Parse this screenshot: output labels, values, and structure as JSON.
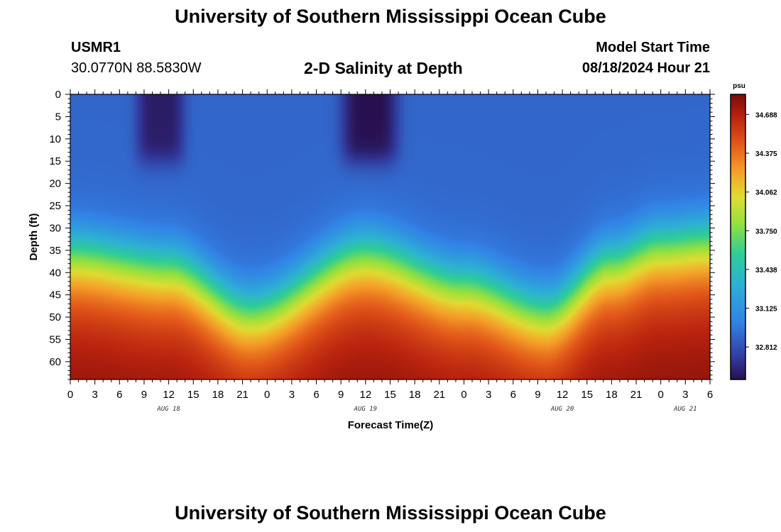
{
  "header": {
    "title": "University of Southern Mississippi Ocean Cube",
    "station_id": "USMR1",
    "coords": "30.0770N  88.5830W",
    "plot_title": "2-D Salinity at Depth",
    "model_start_label": "Model Start Time",
    "model_start_value": "08/18/2024 Hour 21"
  },
  "footer": {
    "title": "University of Southern Mississippi Ocean Cube"
  },
  "chart_data": {
    "type": "heatmap",
    "title": "2-D Salinity at Depth",
    "xlabel": "Forecast Time(Z)",
    "ylabel": "Depth (ft)",
    "x_hours_range": [
      0,
      78
    ],
    "x_tick_labels": [
      "0",
      "3",
      "6",
      "9",
      "12",
      "15",
      "18",
      "21",
      "0",
      "3",
      "6",
      "9",
      "12",
      "15",
      "18",
      "21",
      "0",
      "3",
      "6",
      "9",
      "12",
      "15",
      "18",
      "21",
      "0",
      "3",
      "6"
    ],
    "date_labels": [
      {
        "label": "AUG 18",
        "hour": 12
      },
      {
        "label": "AUG 19",
        "hour": 36
      },
      {
        "label": "AUG 20",
        "hour": 60
      },
      {
        "label": "AUG 21",
        "hour": 75
      }
    ],
    "y_range_ft": [
      0,
      64
    ],
    "y_tick_values": [
      0,
      5,
      10,
      15,
      20,
      25,
      30,
      35,
      40,
      45,
      50,
      55,
      60
    ],
    "colorbar": {
      "unit": "psu",
      "range": [
        32.55,
        34.85
      ],
      "tick_labels": [
        "34.688",
        "34.375",
        "34.062",
        "33.750",
        "33.438",
        "33.125",
        "32.812"
      ],
      "tick_values": [
        34.688,
        34.375,
        34.062,
        33.75,
        33.438,
        33.125,
        32.812
      ]
    },
    "features": {
      "surface_layer_psu": 32.9,
      "surface_fresh_pools": [
        {
          "hour_start": 8,
          "hour_end": 14,
          "depth_to_ft": 15,
          "psu": 32.6
        },
        {
          "hour_start": 33,
          "hour_end": 40,
          "depth_to_ft": 15,
          "psu": 32.55
        }
      ],
      "bottom_max_psu": 34.85,
      "halocline_depth_ft_by_hour": [
        {
          "hour": 0,
          "depth": 33
        },
        {
          "hour": 12,
          "depth": 36
        },
        {
          "hour": 22,
          "depth": 46
        },
        {
          "hour": 36,
          "depth": 33
        },
        {
          "hour": 48,
          "depth": 40
        },
        {
          "hour": 58,
          "depth": 46
        },
        {
          "hour": 66,
          "depth": 35
        },
        {
          "hour": 72,
          "depth": 31
        },
        {
          "hour": 78,
          "depth": 30
        }
      ]
    }
  }
}
